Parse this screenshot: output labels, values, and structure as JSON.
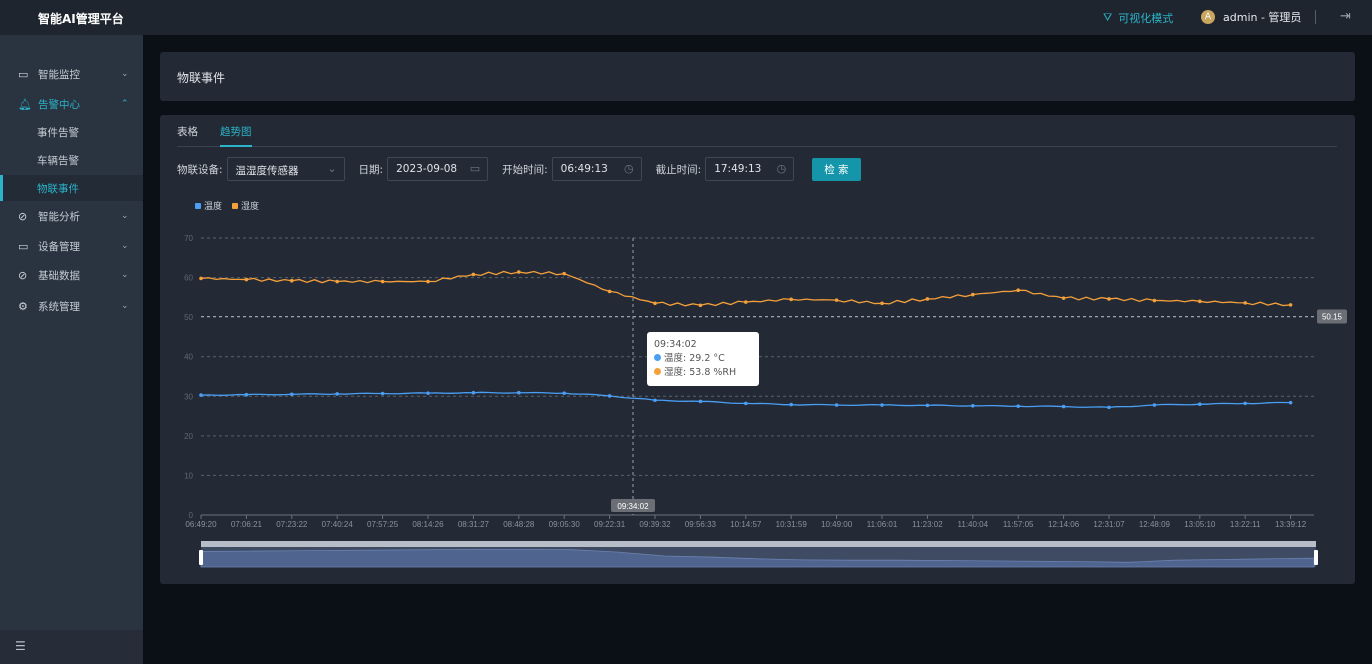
{
  "app": {
    "title": "智能AI管理平台",
    "visual_mode": "可视化模式",
    "user": "admin - 管理员",
    "avatar_letter": "A"
  },
  "sidebar": {
    "items": [
      {
        "label": "智能监控",
        "icon": "monitor-icon",
        "expanded": false
      },
      {
        "label": "告警中心",
        "icon": "bell-icon",
        "expanded": true,
        "children": [
          {
            "label": "事件告警"
          },
          {
            "label": "车辆告警"
          },
          {
            "label": "物联事件",
            "selected": true
          }
        ]
      },
      {
        "label": "智能分析",
        "icon": "compass-icon",
        "expanded": false
      },
      {
        "label": "设备管理",
        "icon": "camera-icon",
        "expanded": false
      },
      {
        "label": "基础数据",
        "icon": "compass-icon",
        "expanded": false
      },
      {
        "label": "系统管理",
        "icon": "gear-icon",
        "expanded": false
      }
    ]
  },
  "page": {
    "title": "物联事件",
    "tabs": [
      {
        "label": "表格"
      },
      {
        "label": "趋势图",
        "active": true
      }
    ]
  },
  "filters": {
    "device_label": "物联设备:",
    "device_value": "温湿度传感器",
    "date_label": "日期:",
    "date_value": "2023-09-08",
    "start_label": "开始时间:",
    "start_value": "06:49:13",
    "end_label": "截止时间:",
    "end_value": "17:49:13",
    "search_button": "检 索"
  },
  "tooltip": {
    "time": "09:34:02",
    "temp_label": "温度: 29.2 °C",
    "hum_label": "湿度: 53.8 %RH"
  },
  "colors": {
    "accent": "#2bb3c9",
    "temperature": "#4a9ff5",
    "humidity": "#f5a03a"
  },
  "chart_data": {
    "type": "line",
    "legend_position": "top-left",
    "grid": true,
    "ylim": [
      0,
      70
    ],
    "yticks": [
      0,
      10,
      20,
      30,
      40,
      50,
      60,
      70
    ],
    "categories": [
      "06:49:20",
      "07:06:21",
      "07:23:22",
      "07:40:24",
      "07:57:25",
      "08:14:26",
      "08:31:27",
      "08:48:28",
      "09:05:30",
      "09:22:31",
      "09:39:32",
      "09:56:33",
      "10:14:57",
      "10:31:59",
      "10:49:00",
      "11:06:01",
      "11:23:02",
      "11:40:04",
      "11:57:05",
      "12:14:06",
      "12:31:07",
      "12:48:09",
      "13:05:10",
      "13:22:11",
      "13:39:12"
    ],
    "series": [
      {
        "name": "温度",
        "unit": "°C",
        "values": [
          30.3,
          30.4,
          30.5,
          30.6,
          30.7,
          30.8,
          30.9,
          30.9,
          30.8,
          30.1,
          29.0,
          28.7,
          28.2,
          27.9,
          27.8,
          27.8,
          27.7,
          27.6,
          27.5,
          27.4,
          27.2,
          27.8,
          28.0,
          28.2,
          28.4
        ]
      },
      {
        "name": "湿度",
        "unit": "%RH",
        "values": [
          59.8,
          59.5,
          59.2,
          59.0,
          59.0,
          59.0,
          60.8,
          61.4,
          61.0,
          56.5,
          53.5,
          53.0,
          53.8,
          54.5,
          54.3,
          53.5,
          54.6,
          55.7,
          56.8,
          54.8,
          54.6,
          54.2,
          54.0,
          53.6,
          53.1
        ]
      }
    ],
    "axis_pointer": {
      "x": "09:34:02",
      "y": "50.15"
    }
  }
}
